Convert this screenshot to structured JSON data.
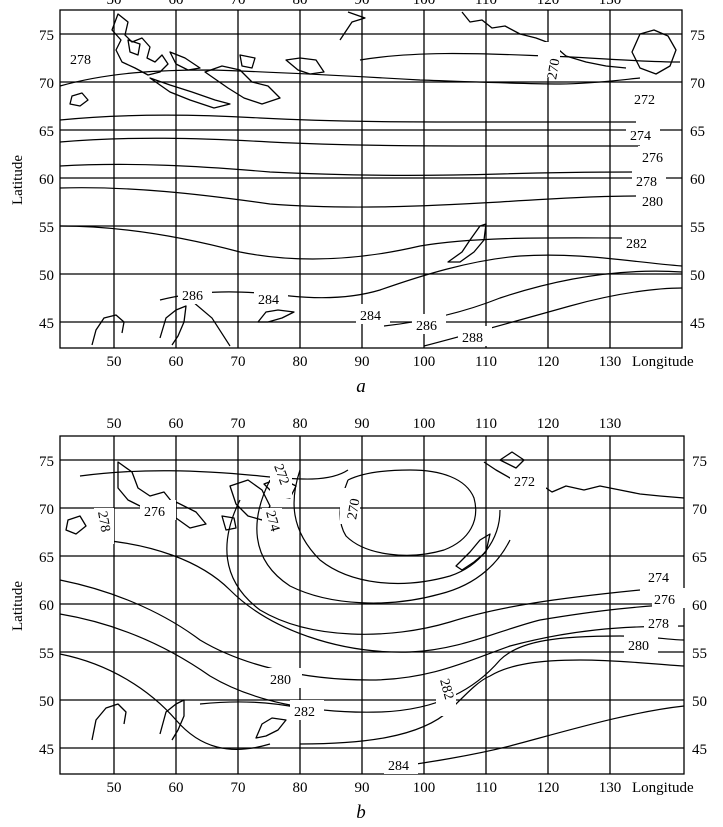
{
  "figure": {
    "panels": [
      {
        "letter": "a",
        "ylabel": "Latitude",
        "xlabel": "Longitude",
        "lon_ticks_bottom": [
          "50",
          "60",
          "70",
          "80",
          "90",
          "100",
          "110",
          "120",
          "130"
        ],
        "lon_ticks_top": [
          "50",
          "60",
          "70",
          "80",
          "90",
          "100",
          "110",
          "120",
          "130"
        ],
        "lat_ticks_left": [
          "75",
          "70",
          "65",
          "60",
          "55",
          "50",
          "45"
        ],
        "lat_ticks_right": [
          "75",
          "70",
          "65",
          "60",
          "55",
          "50",
          "45"
        ],
        "contour_labels": [
          "278",
          "270",
          "272",
          "274",
          "276",
          "278",
          "280",
          "282",
          "286",
          "284",
          "284",
          "286",
          "288"
        ]
      },
      {
        "letter": "b",
        "ylabel": "Latitude",
        "xlabel": "Longitude",
        "lon_ticks_bottom": [
          "50",
          "60",
          "70",
          "80",
          "90",
          "100",
          "110",
          "120",
          "130"
        ],
        "lon_ticks_top": [
          "50",
          "60",
          "70",
          "80",
          "90",
          "100",
          "110",
          "120",
          "130"
        ],
        "lat_ticks_left": [
          "75",
          "70",
          "65",
          "60",
          "55",
          "50",
          "45"
        ],
        "lat_ticks_right": [
          "75",
          "70",
          "65",
          "60",
          "55",
          "50",
          "45"
        ],
        "contour_labels": [
          "276",
          "278",
          "272",
          "274",
          "270",
          "272",
          "274",
          "276",
          "278",
          "280",
          "280",
          "282",
          "282",
          "284"
        ]
      }
    ]
  },
  "colors": {
    "line": "#000000",
    "background": "#ffffff"
  }
}
